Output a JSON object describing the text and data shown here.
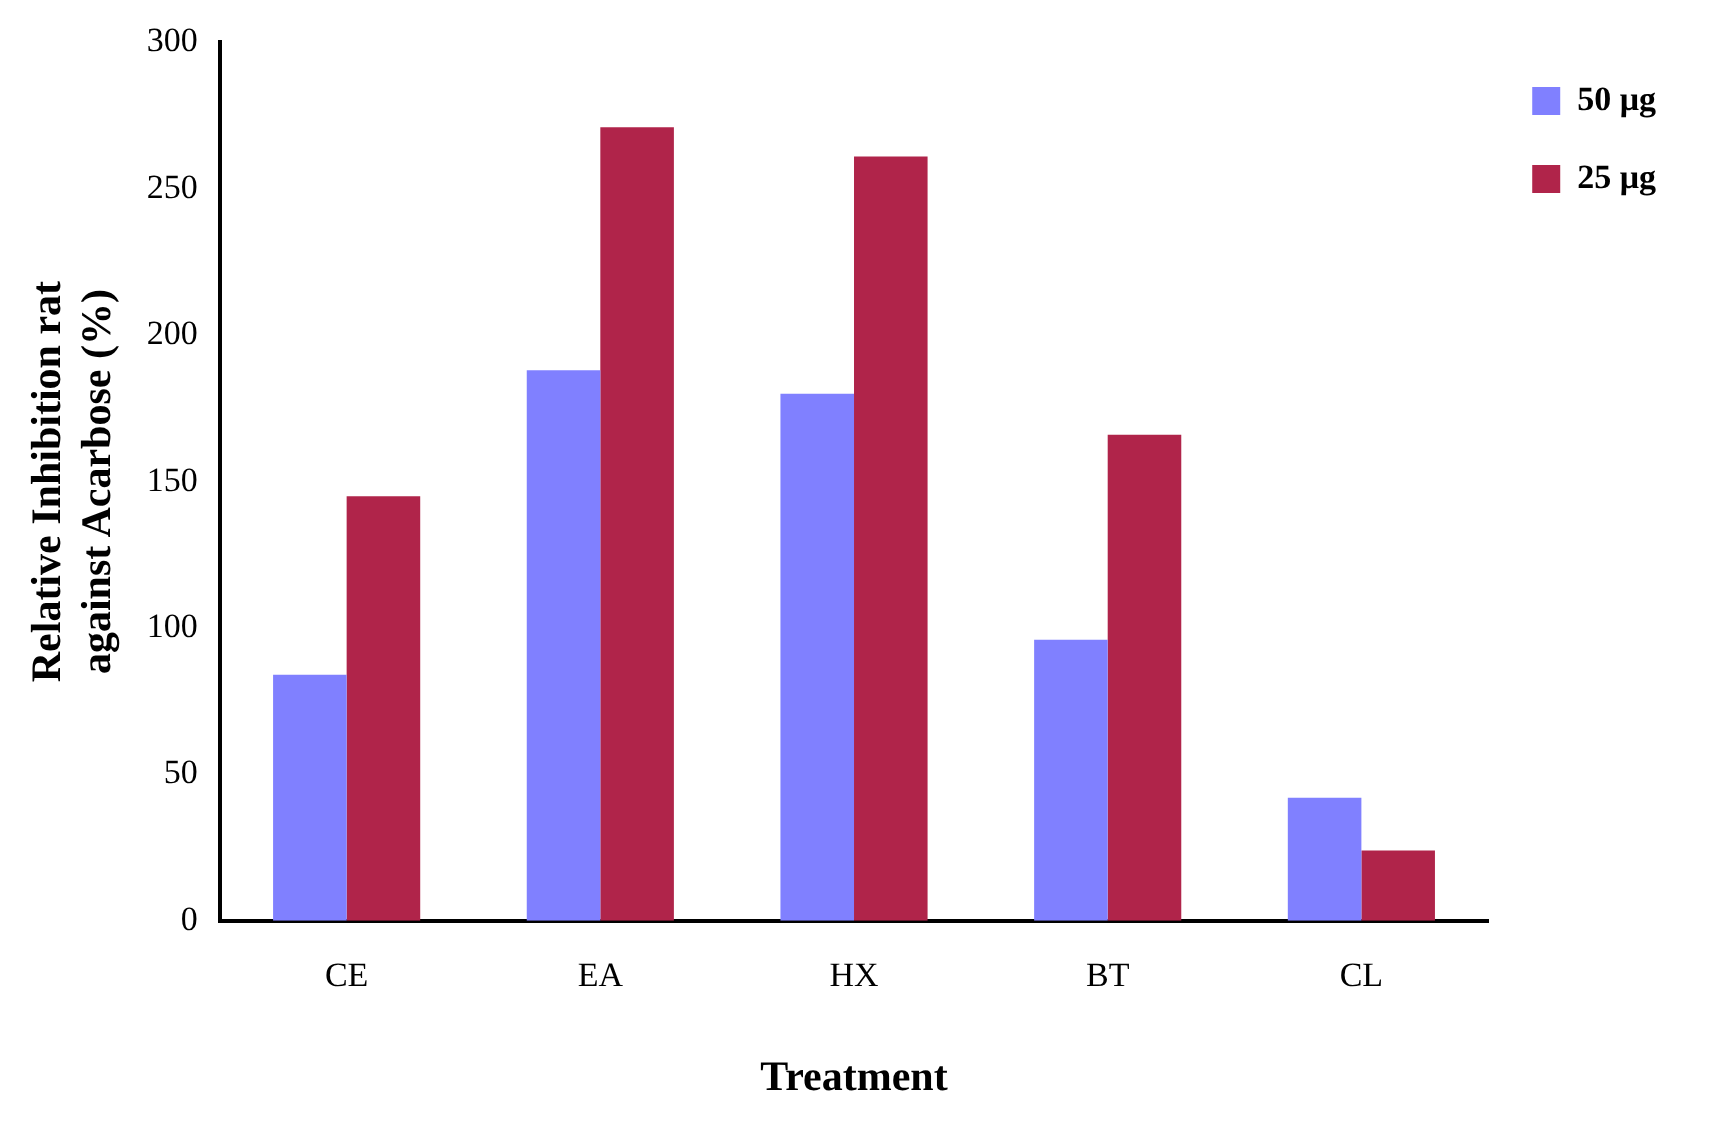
{
  "chart_data": {
    "type": "bar",
    "xlabel": "Treatment",
    "ylabel": "Relative Inhibition rat\nagainst Acarbose (%)",
    "categories": [
      "CE",
      "EA",
      "HX",
      "BT",
      "CL"
    ],
    "series": [
      {
        "name": "50 μg",
        "color": "#8080ff",
        "values": [
          84,
          188,
          180,
          96,
          42
        ]
      },
      {
        "name": "25 μg",
        "color": "#b0244a",
        "values": [
          145,
          271,
          261,
          166,
          24
        ]
      }
    ],
    "ylim": [
      0,
      300
    ],
    "yticks": [
      0,
      50,
      100,
      150,
      200,
      250,
      300
    ],
    "grid": false,
    "legend": "top right"
  }
}
